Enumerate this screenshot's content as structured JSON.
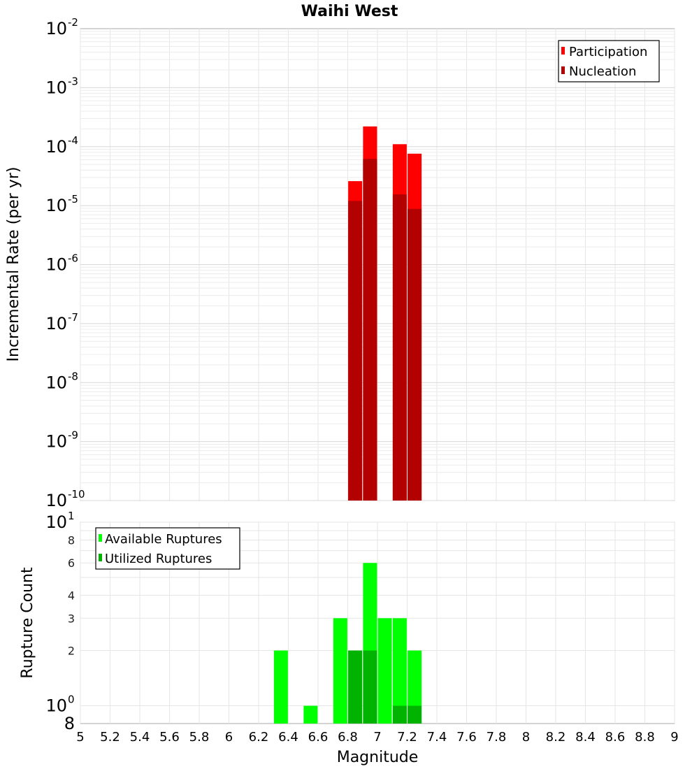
{
  "chart_data": [
    {
      "type": "bar",
      "title": "Waihi West",
      "xlabel": "",
      "ylabel": "Incremental Rate (per yr)",
      "xlim": [
        5,
        9
      ],
      "ylim": [
        1e-10,
        0.01
      ],
      "yscale": "log",
      "grid": true,
      "legend_position": "top-right",
      "y_tick_labels": [
        {
          "base": "10",
          "exp": "-10"
        },
        {
          "base": "10",
          "exp": "-9"
        },
        {
          "base": "10",
          "exp": "-8"
        },
        {
          "base": "10",
          "exp": "-7"
        },
        {
          "base": "10",
          "exp": "-6"
        },
        {
          "base": "10",
          "exp": "-5"
        },
        {
          "base": "10",
          "exp": "-4"
        },
        {
          "base": "10",
          "exp": "-3"
        },
        {
          "base": "10",
          "exp": "-2"
        }
      ],
      "series": [
        {
          "name": "Participation",
          "color": "#ff0000",
          "x": [
            6.85,
            6.95,
            7.15,
            7.25
          ],
          "values": [
            2.6e-05,
            0.00022,
            0.00011,
            7.6e-05
          ]
        },
        {
          "name": "Nucleation",
          "color": "#b30000",
          "x": [
            6.85,
            6.95,
            7.15,
            7.25
          ],
          "values": [
            1.2e-05,
            6.2e-05,
            1.55e-05,
            8.8e-06
          ]
        }
      ]
    },
    {
      "type": "bar",
      "xlabel": "Magnitude",
      "ylabel": "Rupture Count",
      "xlim": [
        5,
        9
      ],
      "ylim": [
        0.8,
        10
      ],
      "yscale": "log",
      "grid": true,
      "legend_position": "top-left",
      "x_tick_labels": [
        "5",
        "5.2",
        "5.4",
        "5.6",
        "5.8",
        "6",
        "6.2",
        "6.4",
        "6.6",
        "6.8",
        "7",
        "7.2",
        "7.4",
        "7.6",
        "7.8",
        "8",
        "8.2",
        "8.4",
        "8.6",
        "8.8",
        "9"
      ],
      "y_major_labels": [
        {
          "value": 10,
          "base": "10",
          "exp": "1"
        },
        {
          "value": 1,
          "base": "10",
          "exp": "0"
        }
      ],
      "y_minor_labels": [
        {
          "value": 8,
          "label": "8"
        },
        {
          "value": 6,
          "label": "6"
        },
        {
          "value": 4,
          "label": "4"
        },
        {
          "value": 3,
          "label": "3"
        },
        {
          "value": 2,
          "label": "2"
        }
      ],
      "y_bottom_label": "8",
      "series": [
        {
          "name": "Available Ruptures",
          "color": "#00ff00",
          "x": [
            6.35,
            6.55,
            6.75,
            6.85,
            6.95,
            7.05,
            7.15,
            7.25
          ],
          "values": [
            2,
            1,
            3,
            2,
            6,
            3,
            3,
            2
          ]
        },
        {
          "name": "Utilized Ruptures",
          "color": "#00b300",
          "x": [
            6.85,
            6.95,
            7.15,
            7.25
          ],
          "values": [
            2,
            2,
            1,
            1
          ]
        }
      ]
    }
  ]
}
